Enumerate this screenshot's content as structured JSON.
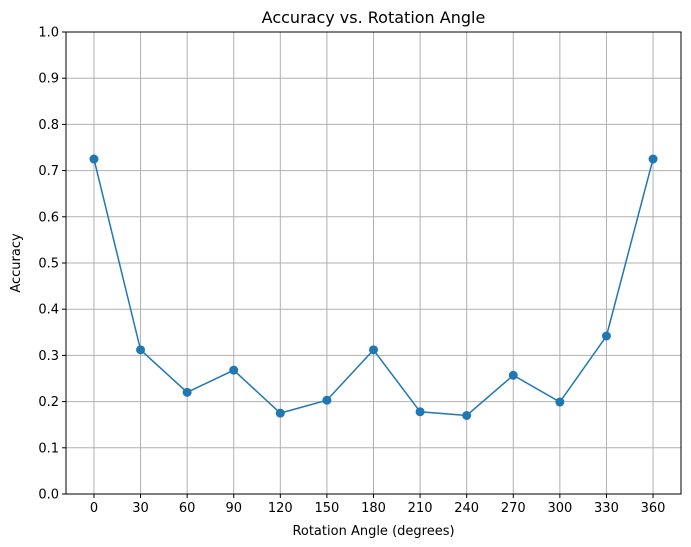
{
  "chart_data": {
    "type": "line",
    "title": "Accuracy vs. Rotation Angle",
    "xlabel": "Rotation Angle (degrees)",
    "ylabel": "Accuracy",
    "x": [
      0,
      30,
      60,
      90,
      120,
      150,
      180,
      210,
      240,
      270,
      300,
      330,
      360
    ],
    "series": [
      {
        "values": [
          0.725,
          0.312,
          0.22,
          0.268,
          0.175,
          0.203,
          0.312,
          0.178,
          0.17,
          0.257,
          0.199,
          0.342,
          0.725
        ],
        "color": "#1f77b4",
        "marker": "circle"
      }
    ],
    "xticks": [
      "0",
      "30",
      "60",
      "90",
      "120",
      "150",
      "180",
      "210",
      "240",
      "270",
      "300",
      "330",
      "360"
    ],
    "yticks": [
      "0.0",
      "0.1",
      "0.2",
      "0.3",
      "0.4",
      "0.5",
      "0.6",
      "0.7",
      "0.8",
      "0.9",
      "1.0"
    ],
    "xlim": [
      -18,
      378
    ],
    "ylim": [
      0,
      1
    ],
    "grid": true,
    "legend": "none"
  }
}
